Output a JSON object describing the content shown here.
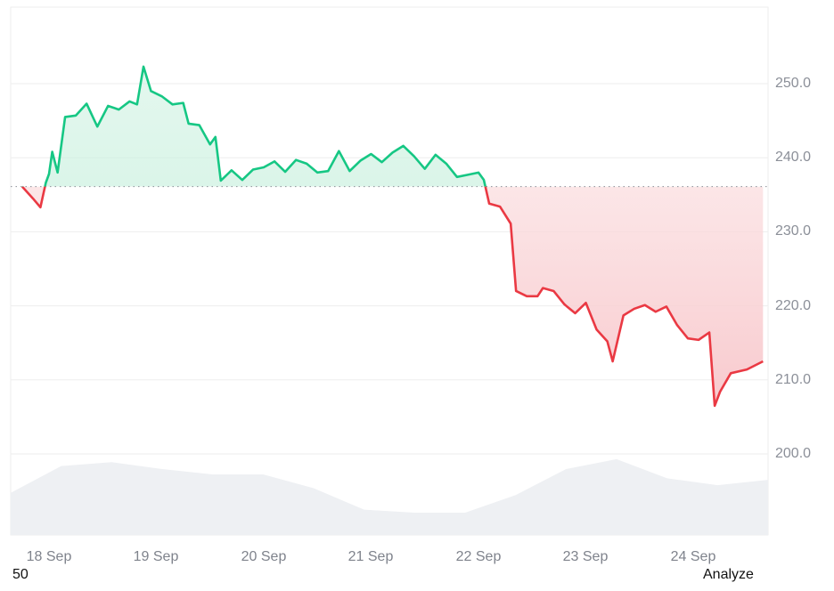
{
  "chart_data": {
    "type": "line",
    "title": "",
    "xlabel": "",
    "ylabel": "",
    "ylim": [
      190,
      258
    ],
    "baseline": 236.1,
    "colors": {
      "up_line": "#16c784",
      "up_fill": "#c9f0de",
      "down_line": "#ea3943",
      "down_fill": "#fbe3e4",
      "volume_fill": "#eef0f3",
      "grid": "#eeeeee",
      "baseline": "#8a8f98"
    },
    "y_ticks": [
      "250.0",
      "240.0",
      "230.0",
      "220.0",
      "210.0",
      "200.0"
    ],
    "x_ticks": [
      "18 Sep",
      "19 Sep",
      "20 Sep",
      "21 Sep",
      "22 Sep",
      "23 Sep",
      "24 Sep"
    ],
    "series": [
      {
        "name": "Price",
        "points": [
          [
            17.75,
            236.1
          ],
          [
            17.85,
            234.5
          ],
          [
            17.92,
            233.3
          ],
          [
            17.97,
            236.6
          ],
          [
            18.0,
            237.8
          ],
          [
            18.03,
            240.8
          ],
          [
            18.08,
            238.0
          ],
          [
            18.15,
            245.5
          ],
          [
            18.25,
            245.7
          ],
          [
            18.35,
            247.3
          ],
          [
            18.45,
            244.2
          ],
          [
            18.55,
            247.0
          ],
          [
            18.65,
            246.5
          ],
          [
            18.75,
            247.6
          ],
          [
            18.82,
            247.2
          ],
          [
            18.88,
            252.3
          ],
          [
            18.95,
            249.0
          ],
          [
            19.05,
            248.3
          ],
          [
            19.15,
            247.2
          ],
          [
            19.25,
            247.4
          ],
          [
            19.3,
            244.6
          ],
          [
            19.4,
            244.4
          ],
          [
            19.5,
            241.8
          ],
          [
            19.55,
            242.8
          ],
          [
            19.6,
            236.9
          ],
          [
            19.7,
            238.3
          ],
          [
            19.8,
            237.0
          ],
          [
            19.9,
            238.4
          ],
          [
            20.0,
            238.7
          ],
          [
            20.1,
            239.5
          ],
          [
            20.2,
            238.1
          ],
          [
            20.3,
            239.7
          ],
          [
            20.4,
            239.2
          ],
          [
            20.5,
            238.0
          ],
          [
            20.6,
            238.2
          ],
          [
            20.7,
            240.9
          ],
          [
            20.8,
            238.2
          ],
          [
            20.9,
            239.6
          ],
          [
            21.0,
            240.5
          ],
          [
            21.1,
            239.4
          ],
          [
            21.2,
            240.7
          ],
          [
            21.3,
            241.6
          ],
          [
            21.4,
            240.2
          ],
          [
            21.5,
            238.5
          ],
          [
            21.6,
            240.4
          ],
          [
            21.7,
            239.2
          ],
          [
            21.8,
            237.4
          ],
          [
            21.9,
            237.7
          ],
          [
            22.0,
            238.0
          ],
          [
            22.05,
            237.0
          ],
          [
            22.1,
            233.8
          ],
          [
            22.2,
            233.4
          ],
          [
            22.3,
            231.1
          ],
          [
            22.35,
            222.0
          ],
          [
            22.45,
            221.3
          ],
          [
            22.55,
            221.3
          ],
          [
            22.6,
            222.4
          ],
          [
            22.7,
            222.0
          ],
          [
            22.8,
            220.2
          ],
          [
            22.9,
            219.0
          ],
          [
            23.0,
            220.4
          ],
          [
            23.1,
            216.8
          ],
          [
            23.2,
            215.2
          ],
          [
            23.25,
            212.5
          ],
          [
            23.35,
            218.7
          ],
          [
            23.45,
            219.6
          ],
          [
            23.55,
            220.1
          ],
          [
            23.65,
            219.2
          ],
          [
            23.75,
            219.9
          ],
          [
            23.85,
            217.4
          ],
          [
            23.95,
            215.6
          ],
          [
            24.05,
            215.4
          ],
          [
            24.15,
            216.4
          ],
          [
            24.2,
            206.5
          ],
          [
            24.25,
            208.4
          ],
          [
            24.35,
            210.9
          ],
          [
            24.5,
            211.4
          ],
          [
            24.65,
            212.5
          ]
        ]
      },
      {
        "name": "Volume",
        "relative_heights": [
          0.55,
          0.9,
          0.95,
          0.86,
          0.79,
          0.79,
          0.61,
          0.33,
          0.29,
          0.29,
          0.52,
          0.86,
          0.99,
          0.74,
          0.65,
          0.72
        ]
      }
    ]
  },
  "axis": {
    "y_labels": [
      "250.0",
      "240.0",
      "230.0",
      "220.0",
      "210.0",
      "200.0"
    ],
    "x_labels": [
      "18 Sep",
      "19 Sep",
      "20 Sep",
      "21 Sep",
      "22 Sep",
      "23 Sep",
      "24 Sep"
    ]
  },
  "footer": {
    "left_text": "50",
    "right_link": "Analyze"
  }
}
